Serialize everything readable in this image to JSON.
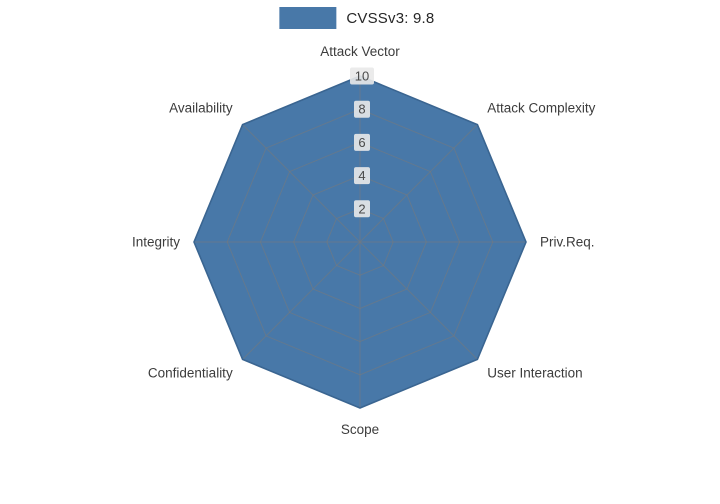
{
  "chart_data": {
    "type": "radar",
    "legend_label": "CVSSv3: 9.8",
    "categories": [
      "Attack Vector",
      "Attack Complexity",
      "Priv.Req.",
      "User Interaction",
      "Scope",
      "Confidentiality",
      "Integrity",
      "Availability"
    ],
    "values": [
      10,
      10,
      10,
      10,
      10,
      10,
      10,
      10
    ],
    "max": 10,
    "ticks": [
      2,
      4,
      6,
      8,
      10
    ],
    "fill_color": "#4878a8",
    "edge_color": "#3a6591",
    "grid_color": "#7a7a7a",
    "tick_box_color": "#e9e9e9",
    "legend_position": "top-center",
    "grid": "on"
  }
}
